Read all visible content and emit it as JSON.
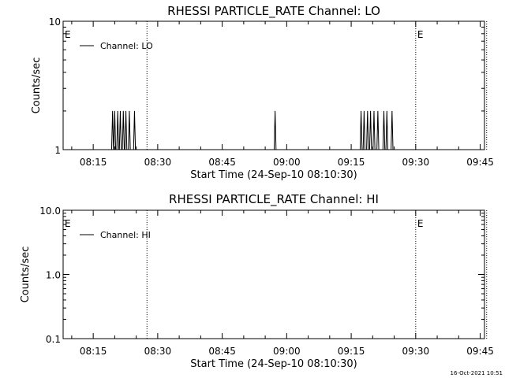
{
  "footer": {
    "timestamp": "16-Oct-2021 10:51"
  },
  "chart_data": [
    {
      "type": "line",
      "title": "RHESSI PARTICLE_RATE Channel: LO",
      "xlabel": "Start Time (24-Sep-10 08:10:30)",
      "ylabel": "Counts/sec",
      "yscale": "log",
      "ylim": [
        1,
        10
      ],
      "y_tick_labels": [
        "1",
        "10"
      ],
      "xlim_minutes": [
        8.0,
        106.0
      ],
      "x_tick_labels": [
        "08:15",
        "08:30",
        "08:45",
        "09:00",
        "09:15",
        "09:30",
        "09:45"
      ],
      "x_tick_minutes": [
        15,
        30,
        45,
        60,
        75,
        90,
        105
      ],
      "legend": {
        "label": "Channel: LO",
        "position": "top-left"
      },
      "event_markers": [
        {
          "label": "E",
          "minute": 8.0
        },
        {
          "label": "E",
          "minute": 90.0
        }
      ],
      "vertical_dotted_minutes": [
        27.5,
        90.0,
        106.5
      ],
      "series": [
        {
          "name": "Channel: LO",
          "spike_minutes": [
            19.5,
            20.0,
            20.7,
            21.3,
            22.0,
            22.6,
            23.4,
            24.6,
            57.3,
            77.3,
            78.0,
            78.8,
            79.5,
            80.3,
            81.2,
            82.6,
            83.3,
            84.5
          ],
          "spike_values": [
            2,
            2,
            2,
            2,
            2,
            2,
            2,
            2,
            2,
            2,
            2,
            2,
            2,
            2,
            2,
            2,
            2,
            2
          ],
          "baseline": 1
        }
      ]
    },
    {
      "type": "line",
      "title": "RHESSI PARTICLE_RATE Channel: HI",
      "xlabel": "Start Time (24-Sep-10 08:10:30)",
      "ylabel": "Counts/sec",
      "yscale": "log",
      "ylim": [
        0.1,
        10
      ],
      "y_tick_labels": [
        "0.1",
        "1.0",
        "10.0"
      ],
      "xlim_minutes": [
        8.0,
        106.0
      ],
      "x_tick_labels": [
        "08:15",
        "08:30",
        "08:45",
        "09:00",
        "09:15",
        "09:30",
        "09:45"
      ],
      "x_tick_minutes": [
        15,
        30,
        45,
        60,
        75,
        90,
        105
      ],
      "legend": {
        "label": "Channel: HI",
        "position": "top-left"
      },
      "event_markers": [
        {
          "label": "E",
          "minute": 8.0
        },
        {
          "label": "E",
          "minute": 90.0
        }
      ],
      "vertical_dotted_minutes": [
        27.5,
        90.0,
        106.5
      ],
      "series": [
        {
          "name": "Channel: HI",
          "spike_minutes": [],
          "spike_values": [],
          "baseline": null
        }
      ]
    }
  ]
}
